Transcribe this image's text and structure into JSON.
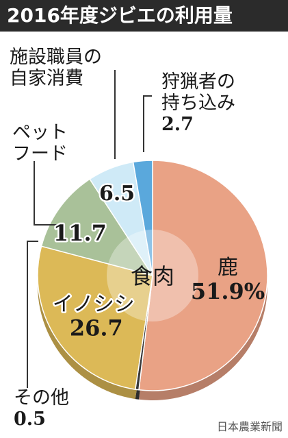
{
  "chart_data": {
    "type": "pie",
    "title": "2016年度ジビエの利用量",
    "center_label": "食肉",
    "slices": [
      {
        "label": "鹿",
        "value": 51.9,
        "value_text": "51.9%",
        "color": "#e9a285"
      },
      {
        "label": "その他",
        "value": 0.5,
        "value_text": "0.5",
        "color": "#3a3a3a"
      },
      {
        "label": "イノシシ",
        "value": 26.7,
        "value_text": "26.7",
        "color": "#dcb957"
      },
      {
        "label": "ペットフード",
        "value": 11.7,
        "value_text": "11.7",
        "color": "#a9c199"
      },
      {
        "label": "施設職員の自家消費",
        "value": 6.5,
        "value_text": "6.5",
        "color": "#cfeaf7"
      },
      {
        "label": "狩猟者の持ち込み",
        "value": 2.7,
        "value_text": "2.7",
        "color": "#5aa8dc"
      }
    ]
  },
  "labels": {
    "other_name": "その他",
    "pet_line1": "ペット",
    "pet_line2": "フード",
    "staff_line1": "施設職員の",
    "staff_line2": "自家消費",
    "hunter_line1": "狩猟者の",
    "hunter_line2": "持ち込み"
  },
  "credit": "日本農業新聞"
}
